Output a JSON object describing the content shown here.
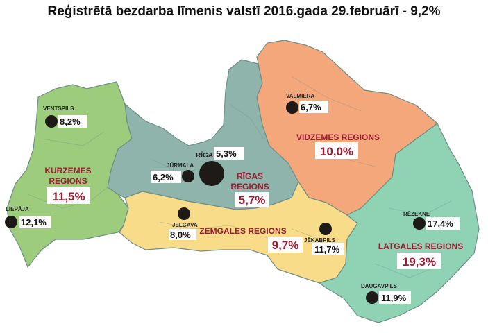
{
  "title": "Reģistrētā bezdarba līmenis valstī 2016.gada 29.februārī - 9,2%",
  "colors": {
    "kurzeme": "#9ccc7c",
    "riga": "#8fb4ab",
    "vidzeme": "#f4a77b",
    "zemgale": "#f8dc8a",
    "latgale": "#8fd2b4",
    "border": "#6d8f86",
    "region_text": "#9b1b30",
    "marker": "#1e1a17"
  },
  "regions": {
    "kurzeme": {
      "name": "KURZEMES REGIONS",
      "name_line1": "KURZEMES",
      "name_line2": "REGIONS",
      "value": "11,5%"
    },
    "riga": {
      "name": "RĪGAS REGIONS",
      "name_line1": "RĪGAS",
      "name_line2": "REGIONS",
      "value": "5,7%"
    },
    "vidzeme": {
      "name": "VIDZEMES REGIONS",
      "value": "10,0%"
    },
    "zemgale": {
      "name": "ZEMGALES REGIONS",
      "value": "9,7%"
    },
    "latgale": {
      "name": "LATGALES REGIONS",
      "value": "19,3%"
    }
  },
  "cities": [
    {
      "id": "ventspils",
      "name": "VENTSPILS",
      "value": "8,2%"
    },
    {
      "id": "liepaja",
      "name": "LIEPĀJA",
      "value": "12,1%"
    },
    {
      "id": "jurmala",
      "name": "JŪRMALA",
      "value": "6,2%"
    },
    {
      "id": "riga",
      "name": "RĪGA",
      "value": "5,3%"
    },
    {
      "id": "jelgava",
      "name": "JELGAVA",
      "value": "8,0%"
    },
    {
      "id": "valmiera",
      "name": "VALMIERA",
      "value": "6,7%"
    },
    {
      "id": "jekabpils",
      "name": "JĒKABPILS",
      "value": "11,7%"
    },
    {
      "id": "rezekne",
      "name": "RĒZEKNE",
      "value": "17,4%"
    },
    {
      "id": "daugavpils",
      "name": "DAUGAVPILS",
      "value": "11,9%"
    }
  ]
}
